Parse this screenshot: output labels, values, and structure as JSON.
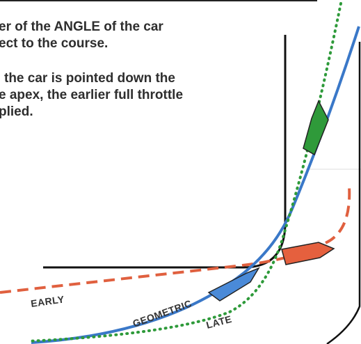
{
  "paragraphs": [
    {
      "lines": [
        "er of the ANGLE of the car",
        "ect to the course."
      ]
    },
    {
      "lines": [
        "the car is pointed down the",
        "e apex, the earlier full throttle",
        "plied."
      ]
    }
  ],
  "labels": {
    "early": "EARLY",
    "geometric": "GEOMETRIC",
    "late": "LATE"
  }
}
